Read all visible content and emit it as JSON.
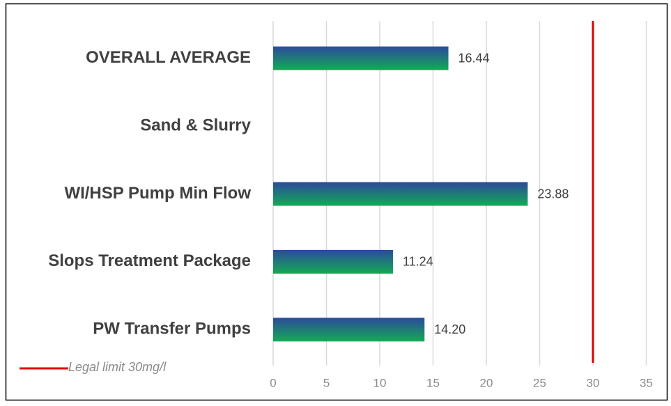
{
  "chart_data": {
    "type": "hbar",
    "categories": [
      "OVERALL AVERAGE",
      "Sand & Slurry",
      "WI/HSP Pump Min Flow",
      "Slops Treatment Package",
      "PW Transfer Pumps"
    ],
    "values": [
      16.44,
      null,
      23.88,
      11.24,
      14.2
    ],
    "value_labels": [
      "16.44",
      null,
      "23.88",
      "11.24",
      "14.20"
    ],
    "colors": [
      "#2c4a9c",
      "#14aa55"
    ],
    "xlim": [
      0,
      35
    ],
    "xticks": [
      0,
      5,
      10,
      15,
      20,
      25,
      30,
      35
    ],
    "grid": true,
    "reference_line": {
      "value": 30,
      "color": "#e00000",
      "label": "Legal limit 30mg/l"
    },
    "legend": "bottom-left"
  }
}
